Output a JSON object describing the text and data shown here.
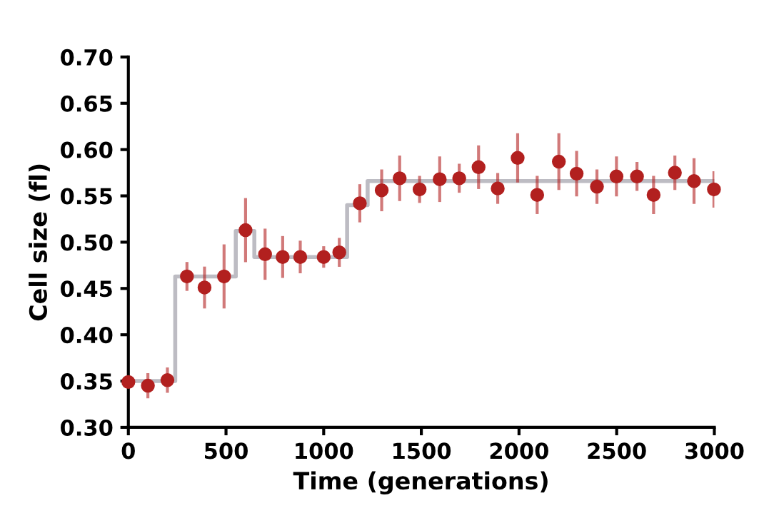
{
  "chart_data": {
    "type": "scatter",
    "xlabel": "Time (generations)",
    "ylabel": "Cell size (fl)",
    "xlim": [
      0,
      3000
    ],
    "xticks": [
      0,
      500,
      1000,
      1500,
      2000,
      2500,
      3000
    ],
    "ylim": [
      0.3,
      0.7
    ],
    "yticks": [
      {
        "value": 0.3,
        "label": "0.30"
      },
      {
        "value": 0.35,
        "label": "0.35"
      },
      {
        "value": 0.4,
        "label": "0.40"
      },
      {
        "value": 0.45,
        "label": "0.45"
      },
      {
        "value": 0.5,
        "label": "0.50"
      },
      {
        "value": 0.55,
        "label": "0.55"
      },
      {
        "value": 0.6,
        "label": "0.60"
      },
      {
        "value": 0.65,
        "label": "0.65"
      },
      {
        "value": 0.7,
        "label": "0.70"
      }
    ],
    "grid": false,
    "legend": false,
    "series": [
      {
        "type": "step",
        "color": "#bdbcc3",
        "x": [
          0,
          240,
          550,
          645,
          1120,
          1225,
          3000
        ],
        "values": [
          0.35,
          0.463,
          0.512,
          0.484,
          0.54,
          0.566,
          0.566
        ]
      },
      {
        "color": "#b2201f",
        "marker": "circle",
        "x": [
          0,
          100,
          200,
          300,
          390,
          490,
          600,
          700,
          790,
          880,
          1000,
          1080,
          1185,
          1297,
          1389,
          1491,
          1594,
          1694,
          1793,
          1891,
          1993,
          2093,
          2204,
          2295,
          2399,
          2499,
          2604,
          2689,
          2798,
          2896,
          2998
        ],
        "values": [
          0.349,
          0.345,
          0.351,
          0.463,
          0.451,
          0.463,
          0.513,
          0.487,
          0.484,
          0.484,
          0.484,
          0.489,
          0.542,
          0.556,
          0.569,
          0.557,
          0.568,
          0.569,
          0.581,
          0.558,
          0.591,
          0.551,
          0.587,
          0.574,
          0.56,
          0.571,
          0.571,
          0.551,
          0.575,
          0.566,
          0.557
        ],
        "errors": [
          null,
          0.012,
          0.012,
          0.014,
          0.021,
          0.033,
          0.033,
          0.026,
          0.021,
          0.016,
          0.01,
          0.014,
          0.019,
          0.021,
          0.023,
          0.013,
          0.023,
          0.014,
          0.022,
          0.015,
          0.025,
          0.019,
          0.029,
          0.023,
          0.017,
          0.02,
          0.014,
          0.019,
          0.017,
          0.023,
          0.018
        ]
      }
    ]
  }
}
